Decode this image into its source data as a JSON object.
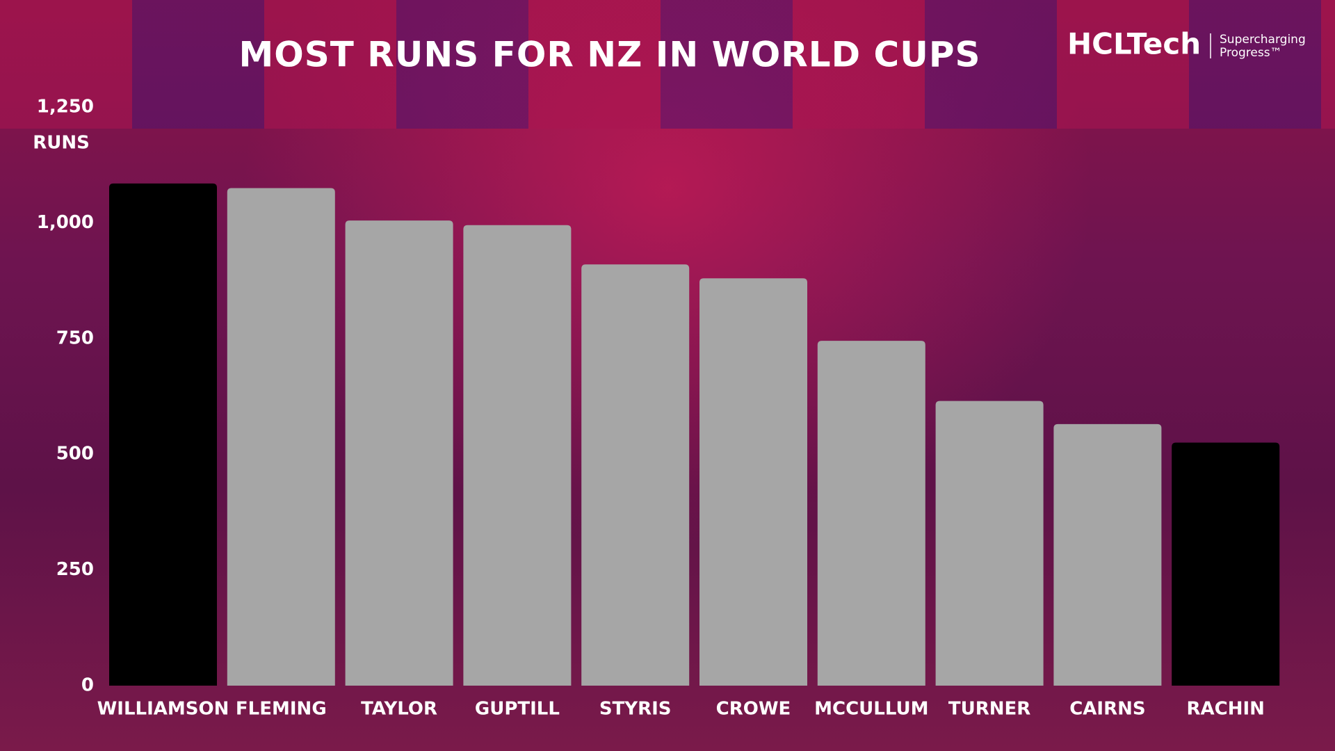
{
  "chart_data": {
    "type": "bar",
    "title": "MOST RUNS FOR NZ IN WORLD CUPS",
    "y_label": "RUNS",
    "logo": {
      "brand": "HCLTech",
      "tagline": "Supercharging Progress™"
    },
    "categories": [
      "WILLIAMSON",
      "FLEMING",
      "TAYLOR",
      "GUPTILL",
      "STYRIS",
      "CROWE",
      "MCCULLUM",
      "TURNER",
      "CAIRNS",
      "RACHIN"
    ],
    "values": [
      1085,
      1075,
      1005,
      995,
      910,
      880,
      745,
      615,
      565,
      525
    ],
    "colors": [
      "#000000",
      "#a6a6a6",
      "#a6a6a6",
      "#a6a6a6",
      "#a6a6a6",
      "#a6a6a6",
      "#a6a6a6",
      "#a6a6a6",
      "#a6a6a6",
      "#000000"
    ],
    "ylim": [
      0,
      1250
    ],
    "yticks": [
      0,
      250,
      500,
      750,
      {
        "value": 1000,
        "label": "1,000"
      },
      {
        "value": 1250,
        "label": "1,250"
      }
    ],
    "grid": false
  }
}
